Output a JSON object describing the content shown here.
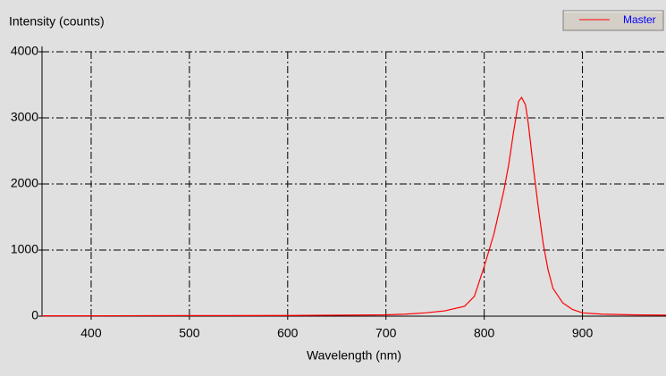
{
  "chart_data": {
    "type": "line",
    "y_label": "Intensity (counts)",
    "x_label": "Wavelength (nm)",
    "x": [
      350,
      400,
      500,
      600,
      650,
      700,
      720,
      740,
      760,
      780,
      790,
      800,
      810,
      820,
      825,
      830,
      835,
      838,
      842,
      845,
      850,
      855,
      860,
      865,
      870,
      880,
      890,
      900,
      920,
      950,
      985
    ],
    "series": [
      {
        "name": "Master",
        "color": "#ff0000",
        "values": [
          5,
          5,
          8,
          10,
          15,
          20,
          30,
          50,
          80,
          150,
          300,
          750,
          1250,
          1900,
          2300,
          2800,
          3250,
          3310,
          3200,
          2900,
          2250,
          1650,
          1100,
          700,
          420,
          200,
          100,
          50,
          30,
          20,
          15
        ]
      }
    ],
    "xlim": [
      350,
      985
    ],
    "ylim": [
      0,
      4000
    ],
    "xticks": [
      400,
      500,
      600,
      700,
      800,
      900
    ],
    "yticks": [
      0,
      1000,
      2000,
      3000,
      4000
    ],
    "grid": true
  }
}
